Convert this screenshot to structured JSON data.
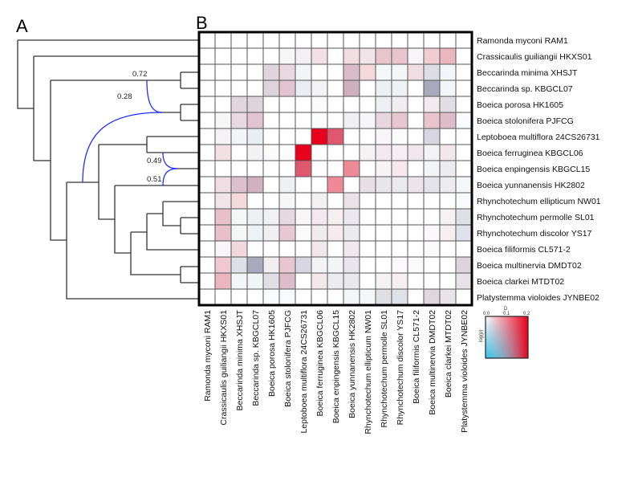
{
  "panels": {
    "a": "A",
    "b": "B"
  },
  "chart_data": {
    "type": "heatmap",
    "title": "",
    "taxa": [
      "Ramonda myconi RAM1",
      "Crassicaulis guiliangii  HKXS01",
      "Beccarinda minima XHSJT",
      "Beccarinda sp. KBGCL07",
      "Boeica porosa HK1605",
      "Boeica stolonifera PJFCG",
      "Leptoboea multiflora 24CS26731",
      "Boeica ferruginea KBGCL06",
      "Boeica enpingensis KBGCL15",
      "Boeica yunnanensis HK2802",
      "Rhynchotechum ellipticum NW01",
      "Rhynchotechum permolle SL01",
      "Rhynchotechum discolor YS17",
      "Boeica filiformis CL571-2",
      "Boeica multinervia DMDT02",
      "Boeica clarkei MTDT02",
      "Platystemma violoides JYNBE02"
    ],
    "cell_colors": [
      [
        "#fff",
        "#fff",
        "#fff",
        "#fff",
        "#fff",
        "#fff",
        "#fff",
        "#fff",
        "#fff",
        "#fff",
        "#fff",
        "#fff",
        "#fff",
        "#fff",
        "#fff",
        "#fff",
        "#fff"
      ],
      [
        "#fff",
        "#fff",
        "#fff",
        "#fff",
        "#fff",
        "#f7f7f7",
        "#f3f0f3",
        "#f3e0e5",
        "#fff",
        "#f2dde2",
        "#f0e4e8",
        "#e8c4cc",
        "#e8c4cc",
        "#f7f5f7",
        "#f0ccd3",
        "#ebb6c0",
        "#fff"
      ],
      [
        "#fff",
        "#fff",
        "#fff",
        "#fff",
        "#e0d5dd",
        "#ead8e0",
        "#f2f5f8",
        "#fff",
        "#fff",
        "#d8bcc8",
        "#f3d8dc",
        "#f5f8fa",
        "#f2f6f8",
        "#f0dde2",
        "#dcdde4",
        "#f2f6f8",
        "#fff"
      ],
      [
        "#fff",
        "#fff",
        "#fff",
        "#fff",
        "#ddd3db",
        "#e2c4d0",
        "#e9edf2",
        "#f3f2f5",
        "#fff",
        "#cdb0bc",
        "#fff",
        "#eceff4",
        "#eff2f5",
        "#fff",
        "#a9a9bc",
        "#f2f6f8",
        "#fff"
      ],
      [
        "#fff",
        "#fff",
        "#e2d6de",
        "#dfd3dc",
        "#fff",
        "#fff",
        "#fff",
        "#fbfbfb",
        "#fff",
        "#fff",
        "#fff",
        "#eeeff3",
        "#efedf0",
        "#fff",
        "#f0eaee",
        "#e0dde5",
        "#fff"
      ],
      [
        "#fff",
        "#f7f7f7",
        "#e8d8e0",
        "#e2c4d0",
        "#fff",
        "#fff",
        "#fff",
        "#fbfcfc",
        "#fff",
        "#f0f0f4",
        "#f6f6f8",
        "#e8d6de",
        "#e6c6d0",
        "#fff",
        "#e8c4cc",
        "#dcbcc8",
        "#fafbfc"
      ],
      [
        "#fff",
        "#f4f2f5",
        "#f2f5f8",
        "#e8eef2",
        "#fff",
        "#fff",
        "#fff",
        "#e8001c",
        "#e05870",
        "#fff",
        "#fff",
        "#f8f6f8",
        "#fcfcfc",
        "#fff",
        "#d8d6e2",
        "#fff",
        "#fff"
      ],
      [
        "#fff",
        "#f3e0e5",
        "#fff",
        "#f2f2f4",
        "#fbfbfb",
        "#fbfcfc",
        "#e8001c",
        "#fff",
        "#fff",
        "#fff",
        "#f5f2f4",
        "#f2e8ee",
        "#f5eef2",
        "#f0e6ec",
        "#f3f3f5",
        "#f2e8ec",
        "#fff"
      ],
      [
        "#fff",
        "#fff",
        "#fff",
        "#fff",
        "#fff",
        "#fff",
        "#e05870",
        "#fff",
        "#fff",
        "#ee8a98",
        "#fff",
        "#f8f2f4",
        "#f6e8ec",
        "#fff",
        "#f3f4f6",
        "#ecebf0",
        "#fff"
      ],
      [
        "#fff",
        "#f0dde2",
        "#dcc0cc",
        "#cfb2be",
        "#fff",
        "#eff0f4",
        "#fff",
        "#fff",
        "#ee8a98",
        "#fff",
        "#e8dee4",
        "#e8e6eb",
        "#ebe9ee",
        "#ebe4ea",
        "#e5e3ea",
        "#ececf0",
        "#f4f7f9"
      ],
      [
        "#fff",
        "#f0e4e8",
        "#f3d8dc",
        "#fff",
        "#fff",
        "#f7f7f8",
        "#fff",
        "#f3f0f2",
        "#fff",
        "#ebe2e8",
        "#fff",
        "#fff",
        "#fff",
        "#fff",
        "#fff",
        "#fff",
        "#f8fafb"
      ],
      [
        "#fff",
        "#e8c0ca",
        "#f3f7f8",
        "#ecf0f3",
        "#f0f1f4",
        "#e6d8e0",
        "#f8f6f7",
        "#f3e8ee",
        "#f6eef1",
        "#eae8ee",
        "#fff",
        "#fff",
        "#fff",
        "#fff",
        "#fff",
        "#f6f2f4",
        "#dfdfe6"
      ],
      [
        "#fff",
        "#e8c0ca",
        "#f3f7f8",
        "#ecf2f5",
        "#f0f0f2",
        "#e8c8d3",
        "#fafafa",
        "#f3eaee",
        "#f6eaee",
        "#ebeaee",
        "#fff",
        "#fff",
        "#fff",
        "#fff",
        "#faf8fa",
        "#f6eef0",
        "#dfe2ea"
      ],
      [
        "#fff",
        "#f7f5f7",
        "#f0d8de",
        "#fff",
        "#fff",
        "#fff",
        "#fff",
        "#f0e6ec",
        "#fff",
        "#efe8ee",
        "#fff",
        "#fff",
        "#fff",
        "#fff",
        "#fbfafb",
        "#fff",
        "#fff"
      ],
      [
        "#fff",
        "#f0c8d2",
        "#dde0e8",
        "#a9a9bc",
        "#f0eef2",
        "#e8c6d0",
        "#d8d6e2",
        "#f3f3f5",
        "#f3f4f6",
        "#e8e6ec",
        "#fff",
        "#fff",
        "#fbf9fb",
        "#fafafb",
        "#fff",
        "#fff",
        "#ddd3dc"
      ],
      [
        "#fff",
        "#ebb6c0",
        "#f2f6f8",
        "#f0f5f8",
        "#e0dee6",
        "#dcbcc8",
        "#fff",
        "#f2e8ec",
        "#ececf0",
        "#e8e7ec",
        "#fff",
        "#f6f2f4",
        "#f6eef1",
        "#fff",
        "#fff",
        "#fff",
        "#e6e2e8"
      ],
      [
        "#fff",
        "#fff",
        "#fff",
        "#fff",
        "#fafbfc",
        "#f8fafb",
        "#fff",
        "#fff",
        "#fff",
        "#f2f6f8",
        "#f6f7f9",
        "#dfe0e5",
        "#dfe1e8",
        "#fff",
        "#e0d6de",
        "#e8e4ea",
        "#fff"
      ]
    ],
    "legend": {
      "title": "D",
      "x_ticks": [
        "0.0",
        "0.1",
        "0.2"
      ],
      "ylabel": "log(p)",
      "colors": {
        "low_d_high_p": "#ffffff",
        "high_d": "#e8001c",
        "low_d_low_p": "#1ab8e0"
      }
    },
    "tree": {
      "reticulation_color": "#2020ff",
      "inheritance_labels": [
        "0.72",
        "0.28",
        "0.49",
        "0.51"
      ]
    }
  }
}
